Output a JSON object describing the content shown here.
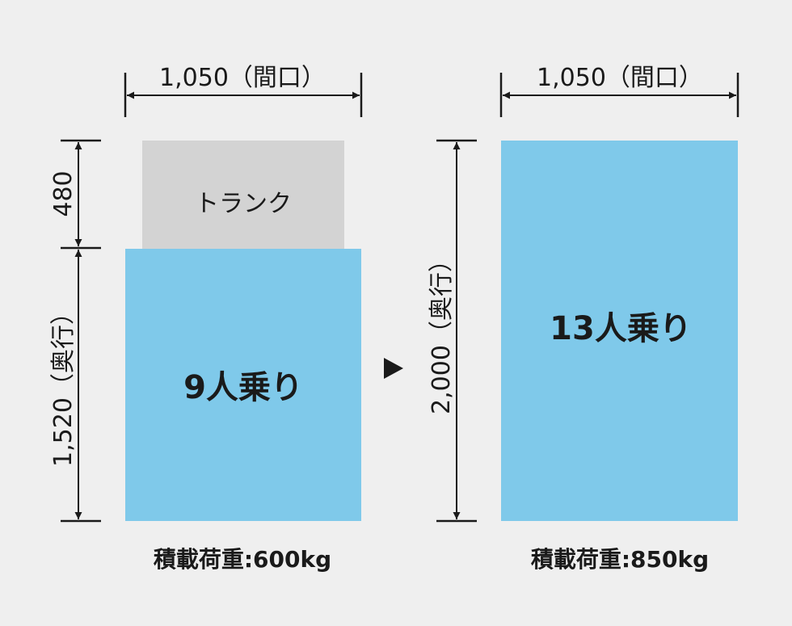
{
  "colors": {
    "background": "#efefef",
    "cabin": "#7fc9ea",
    "trunk": "#d3d3d3",
    "line": "#1a1a1a"
  },
  "left": {
    "width_label": "1,050（間口）",
    "trunk_depth_label": "480",
    "depth_label": "1,520（奥行）",
    "trunk_label": "トランク",
    "capacity_label": "9人乗り",
    "load_label": "積載荷重:600kg"
  },
  "arrow_icon": "triangle-right",
  "right": {
    "width_label": "1,050（間口）",
    "depth_label": "2,000（奥行）",
    "capacity_label": "13人乗り",
    "load_label": "積載荷重:850kg"
  }
}
